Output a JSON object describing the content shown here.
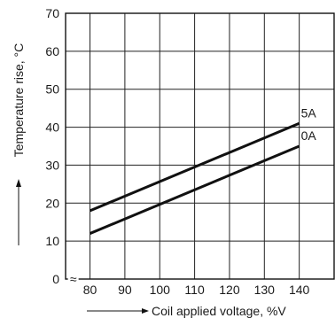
{
  "chart_data": {
    "type": "line",
    "xlabel": "Coil applied voltage, %V",
    "ylabel": "Temperature rise, °C",
    "x_ticks": [
      "80",
      "90",
      "100",
      "110",
      "120",
      "130",
      "140"
    ],
    "y_ticks": [
      "0",
      "10",
      "20",
      "30",
      "40",
      "50",
      "60",
      "70"
    ],
    "x_break_glyph": "≈",
    "xlim": [
      73,
      150
    ],
    "ylim": [
      0,
      70
    ],
    "x_axis_origin": 73,
    "x_axis_break": true,
    "grid": true,
    "series": [
      {
        "name": "5A",
        "x": [
          80,
          140
        ],
        "y": [
          18,
          41
        ],
        "color": "#111111"
      },
      {
        "name": "0A",
        "x": [
          80,
          140
        ],
        "y": [
          12,
          35
        ],
        "color": "#111111"
      }
    ]
  }
}
